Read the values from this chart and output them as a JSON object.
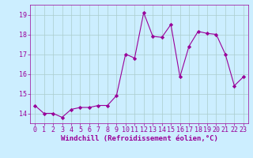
{
  "x": [
    0,
    1,
    2,
    3,
    4,
    5,
    6,
    7,
    8,
    9,
    10,
    11,
    12,
    13,
    14,
    15,
    16,
    17,
    18,
    19,
    20,
    21,
    22,
    23
  ],
  "y": [
    14.4,
    14.0,
    14.0,
    13.8,
    14.2,
    14.3,
    14.3,
    14.4,
    14.4,
    14.9,
    17.0,
    16.8,
    19.1,
    17.9,
    17.85,
    18.5,
    15.85,
    17.4,
    18.15,
    18.05,
    18.0,
    17.0,
    15.4,
    15.85
  ],
  "line_color": "#990099",
  "marker": "D",
  "marker_size": 2.2,
  "bg_color": "#cceeff",
  "grid_color": "#aacccc",
  "xlabel": "Windchill (Refroidissement éolien,°C)",
  "xlabel_fontsize": 6.5,
  "tick_fontsize": 6.0,
  "ylim": [
    13.5,
    19.5
  ],
  "xlim": [
    -0.5,
    23.5
  ],
  "yticks": [
    14,
    15,
    16,
    17,
    18,
    19
  ],
  "xticks": [
    0,
    1,
    2,
    3,
    4,
    5,
    6,
    7,
    8,
    9,
    10,
    11,
    12,
    13,
    14,
    15,
    16,
    17,
    18,
    19,
    20,
    21,
    22,
    23
  ]
}
